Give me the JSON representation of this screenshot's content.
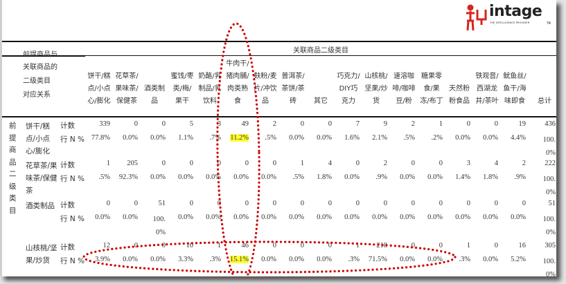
{
  "logo": {
    "wordmark": "intage",
    "tagline": "THE INTELLIGENCE PROVIDER",
    "tm": "TM",
    "brand_color": "#d9231d"
  },
  "table": {
    "corner_label_lines": [
      "前提商品与",
      "关联商品的",
      "二级类目",
      "对应关系"
    ],
    "group_header": "关联商品二级类目",
    "row_group_label": "前提商品二级类目",
    "columns": [
      "饼干/糕点/小点心/膨化",
      "花草茶/果味茶/保健茶",
      "酒类制品",
      "蜜饯/枣类/梅/果干",
      "奶酪/乳制品/乳饮料",
      "牛肉干/猪肉脯/肉类熟食",
      "麸粉/麦片/冲饮品",
      "普洱茶/茶饼/茶砖",
      "其它",
      "巧克力/DIY巧克力",
      "山核桃/坚果/炒货",
      "速溶咖啡/咖啡豆/粉",
      "糖果零食/果冻/布丁",
      "天然粉粉食品",
      "铁观音/西湖龙井/茶叶",
      "鱿鱼丝/鱼干/海味即食",
      "总计"
    ],
    "rows": [
      {
        "label": "饼干/糕点/小点心/膨化",
        "count_label": "计数",
        "pct_label": "行 N %",
        "counts": [
          "339",
          "0",
          "0",
          "5",
          "3",
          "49",
          "2",
          "0",
          "0",
          "7",
          "9",
          "2",
          "1",
          "0",
          "0",
          "19",
          "436"
        ],
        "pcts": [
          "77.8%",
          "0.0%",
          "0.0%",
          "1.1%",
          ".7%",
          "11.2%",
          ".5%",
          "0.0%",
          "0.0%",
          "1.6%",
          "2.1%",
          ".5%",
          ".2%",
          "0.0%",
          "0.0%",
          "4.4%",
          "100.0%"
        ]
      },
      {
        "label": "花草茶/果味茶/保健茶",
        "count_label": "计数",
        "pct_label": "行 N %",
        "counts": [
          "1",
          "205",
          "0",
          "0",
          "0",
          "0",
          "0",
          "1",
          "4",
          "0",
          "2",
          "0",
          "0",
          "3",
          "4",
          "2",
          "222"
        ],
        "pcts": [
          ".5%",
          "92.3%",
          "0.0%",
          "0.0%",
          "0.0%",
          "0.0%",
          "0.0%",
          ".5%",
          "1.8%",
          "0.0%",
          ".9%",
          "0.0%",
          "0.0%",
          "1.4%",
          "1.8%",
          ".9%",
          "100.0%"
        ]
      },
      {
        "label": "酒类制品",
        "count_label": "计数",
        "pct_label": "行 N %",
        "counts": [
          "0",
          "0",
          "51",
          "0",
          "0",
          "0",
          "0",
          "0",
          "0",
          "0",
          "0",
          "0",
          "0",
          "0",
          "0",
          "0",
          "51"
        ],
        "pcts": [
          "0.0%",
          "0.0%",
          "100.0%",
          "0.0%",
          "0.0%",
          "0.0%",
          "0.0%",
          "0.0%",
          "0.0%",
          "0.0%",
          "0.0%",
          "0.0%",
          "0.0%",
          "0.0%",
          "0.0%",
          "0.0%",
          "100.0%"
        ]
      },
      {
        "label": "山核桃/坚果/炒货",
        "count_label": "计数",
        "pct_label": "行 N %",
        "counts": [
          "12",
          "0",
          "0",
          "10",
          "1",
          "46",
          "0",
          "0",
          "0",
          "1",
          "218",
          "0",
          "0",
          "1",
          "0",
          "16",
          "305"
        ],
        "pcts": [
          "3.9%",
          "0.0%",
          "0.0%",
          "3.3%",
          ".3%",
          "15.1%",
          "0.0%",
          "0.0%",
          "0.0%",
          ".3%",
          "71.5%",
          "0.0%",
          "0.0%",
          ".3%",
          "0.0%",
          "5.2%",
          "100.0%"
        ]
      }
    ],
    "highlighted_cells": [
      {
        "row": 0,
        "col": 5
      },
      {
        "row": 3,
        "col": 5
      }
    ],
    "highlight_color": "#ffff33",
    "annotation_color": "#cc0000"
  }
}
